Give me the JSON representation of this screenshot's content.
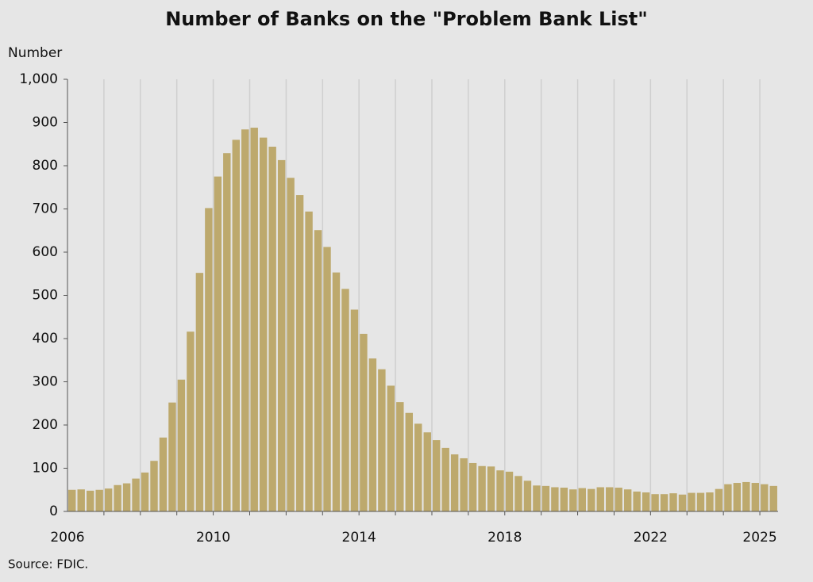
{
  "chart_data": {
    "type": "bar",
    "title": "Number of Banks on the \"Problem Bank List\"",
    "y_label": "Number",
    "source": "Source: FDIC.",
    "color": "#bda96d",
    "x": [
      2006.125,
      2006.375,
      2006.625,
      2006.875,
      2007.125,
      2007.375,
      2007.625,
      2007.875,
      2008.125,
      2008.375,
      2008.625,
      2008.875,
      2009.125,
      2009.375,
      2009.625,
      2009.875,
      2010.125,
      2010.375,
      2010.625,
      2010.875,
      2011.125,
      2011.375,
      2011.625,
      2011.875,
      2012.125,
      2012.375,
      2012.625,
      2012.875,
      2013.125,
      2013.375,
      2013.625,
      2013.875,
      2014.125,
      2014.375,
      2014.625,
      2014.875,
      2015.125,
      2015.375,
      2015.625,
      2015.875,
      2016.125,
      2016.375,
      2016.625,
      2016.875,
      2017.125,
      2017.375,
      2017.625,
      2017.875,
      2018.125,
      2018.375,
      2018.625,
      2018.875,
      2019.125,
      2019.375,
      2019.625,
      2019.875,
      2020.125,
      2020.375,
      2020.625,
      2020.875,
      2021.125,
      2021.375,
      2021.625,
      2021.875,
      2022.125,
      2022.375,
      2022.625,
      2022.875,
      2023.125,
      2023.375,
      2023.625,
      2023.875,
      2024.125,
      2024.375,
      2024.625,
      2024.875,
      2025.125,
      2025.375
    ],
    "values": [
      50,
      51,
      48,
      50,
      53,
      61,
      65,
      76,
      90,
      117,
      171,
      252,
      305,
      416,
      552,
      702,
      775,
      829,
      860,
      884,
      888,
      865,
      844,
      813,
      772,
      732,
      694,
      651,
      612,
      553,
      515,
      467,
      411,
      354,
      329,
      291,
      253,
      228,
      203,
      183,
      165,
      147,
      132,
      123,
      112,
      105,
      104,
      95,
      92,
      82,
      71,
      60,
      59,
      56,
      55,
      51,
      54,
      52,
      56,
      56,
      55,
      51,
      46,
      44,
      40,
      40,
      42,
      39,
      43,
      43,
      44,
      52,
      63,
      66,
      68,
      66,
      63,
      59
    ],
    "xlim": [
      2006,
      2025.5
    ],
    "xticks": [
      2006,
      2010,
      2014,
      2018,
      2022,
      2025
    ],
    "xgrid": [
      2007,
      2008,
      2009,
      2010,
      2011,
      2012,
      2013,
      2014,
      2015,
      2016,
      2017,
      2018,
      2019,
      2020,
      2021,
      2022,
      2023,
      2024,
      2025
    ],
    "ylim": [
      0,
      1000
    ],
    "yticks": [
      0,
      100,
      200,
      300,
      400,
      500,
      600,
      700,
      800,
      900,
      {
        "value": 1000,
        "label": "1,000"
      }
    ]
  }
}
